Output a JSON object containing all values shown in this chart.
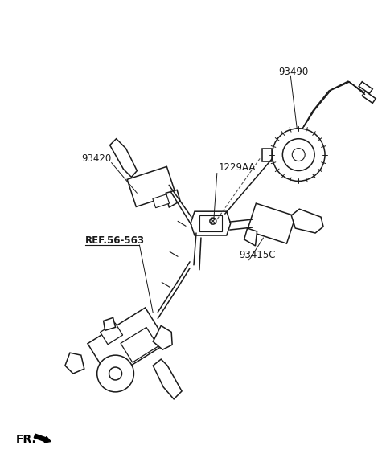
{
  "background_color": "#ffffff",
  "line_color": "#1a1a1a",
  "label_color": "#1a1a1a",
  "label_93490": "93490",
  "label_93420": "93420",
  "label_1229AA": "1229AA",
  "label_ref": "REF.56-563",
  "label_93415C": "93415C",
  "fr_label": "FR.",
  "fig_width": 4.8,
  "fig_height": 5.9,
  "dpi": 100
}
